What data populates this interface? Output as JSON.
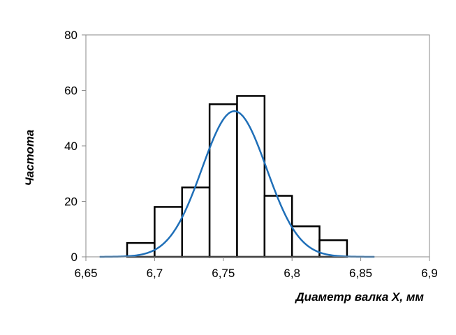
{
  "chart_data": {
    "type": "bar",
    "title": "",
    "xlabel": "Диаметр валка X, мм",
    "ylabel": "Частота",
    "xlim": [
      6.65,
      6.9
    ],
    "ylim": [
      0,
      80
    ],
    "x_ticks": [
      "6,65",
      "6,7",
      "6,75",
      "6,8",
      "6,85",
      "6,9"
    ],
    "x_tick_values": [
      6.65,
      6.7,
      6.75,
      6.8,
      6.85,
      6.9
    ],
    "y_ticks": [
      "0",
      "20",
      "40",
      "60",
      "80"
    ],
    "y_tick_values": [
      0,
      20,
      40,
      60,
      80
    ],
    "grid": false,
    "legend": "none",
    "histogram": {
      "bin_edges": [
        6.68,
        6.7,
        6.72,
        6.74,
        6.76,
        6.78,
        6.8,
        6.82,
        6.84
      ],
      "values": [
        5,
        18,
        25,
        55,
        58,
        22,
        11,
        6
      ],
      "color": "#000000"
    },
    "curve": {
      "type": "line",
      "description_mean": 6.758,
      "description_std": 0.0235,
      "peak": 52.5,
      "x_range": [
        6.66,
        6.86
      ],
      "color": "#1f6fb8"
    }
  }
}
